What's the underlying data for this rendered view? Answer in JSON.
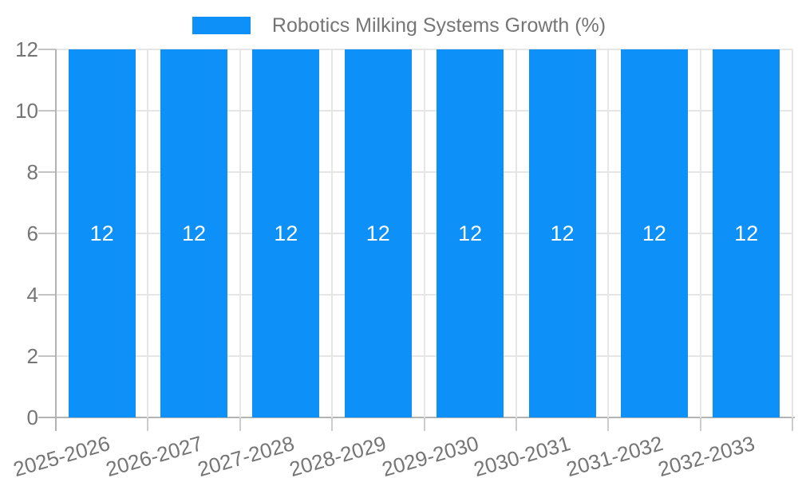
{
  "legend": {
    "label": "Robotics Milking Systems Growth (%)"
  },
  "chart_data": {
    "type": "bar",
    "title": "Robotics Milking Systems Growth (%)",
    "categories": [
      "2025-2026",
      "2026-2027",
      "2027-2028",
      "2028-2029",
      "2029-2030",
      "2030-2031",
      "2031-2032",
      "2032-2033"
    ],
    "values": [
      12,
      12,
      12,
      12,
      12,
      12,
      12,
      12
    ],
    "bar_labels": [
      "12",
      "12",
      "12",
      "12",
      "12",
      "12",
      "12",
      "12"
    ],
    "xlabel": "",
    "ylabel": "",
    "ylim": [
      0,
      12
    ],
    "yticks": [
      0,
      2,
      4,
      6,
      8,
      10,
      12
    ],
    "grid": true,
    "legend_position": "top-center",
    "colors": {
      "bar": "#0d90f8",
      "axis_text": "#757575",
      "bar_label_text": "#ffffff",
      "gridline": "#e6e6e6",
      "axis_line": "#b3b3b3",
      "background": "#ffffff"
    }
  }
}
